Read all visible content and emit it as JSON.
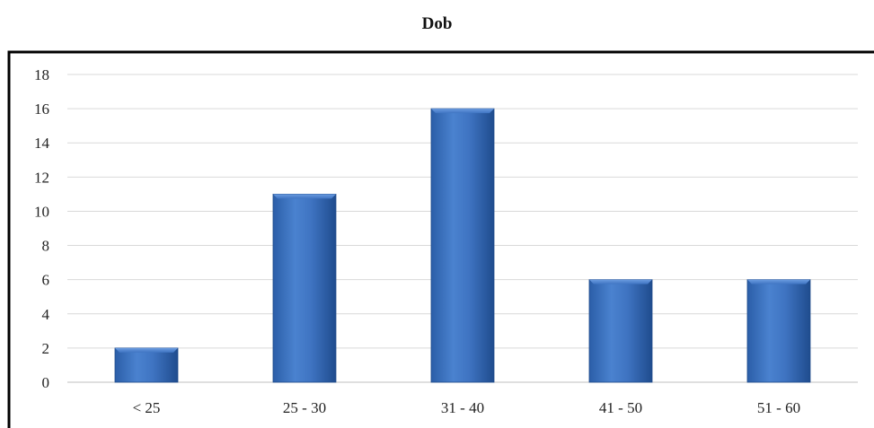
{
  "chart_data": {
    "type": "bar",
    "title": "Dob",
    "xlabel": "",
    "ylabel": "",
    "categories": [
      "< 25",
      "25 - 30",
      "31 - 40",
      "41 - 50",
      "51 - 60"
    ],
    "values": [
      2,
      11,
      16,
      6,
      6
    ],
    "ylim": [
      0,
      18
    ],
    "yticks": [
      0,
      2,
      4,
      6,
      8,
      10,
      12,
      14,
      16,
      18
    ],
    "grid": true,
    "legend": "none",
    "bar_color": "#3f74c2",
    "bar_color_dark": "#1e4a8a",
    "grid_color": "#d9d9d9",
    "frame_color": "#000000"
  }
}
